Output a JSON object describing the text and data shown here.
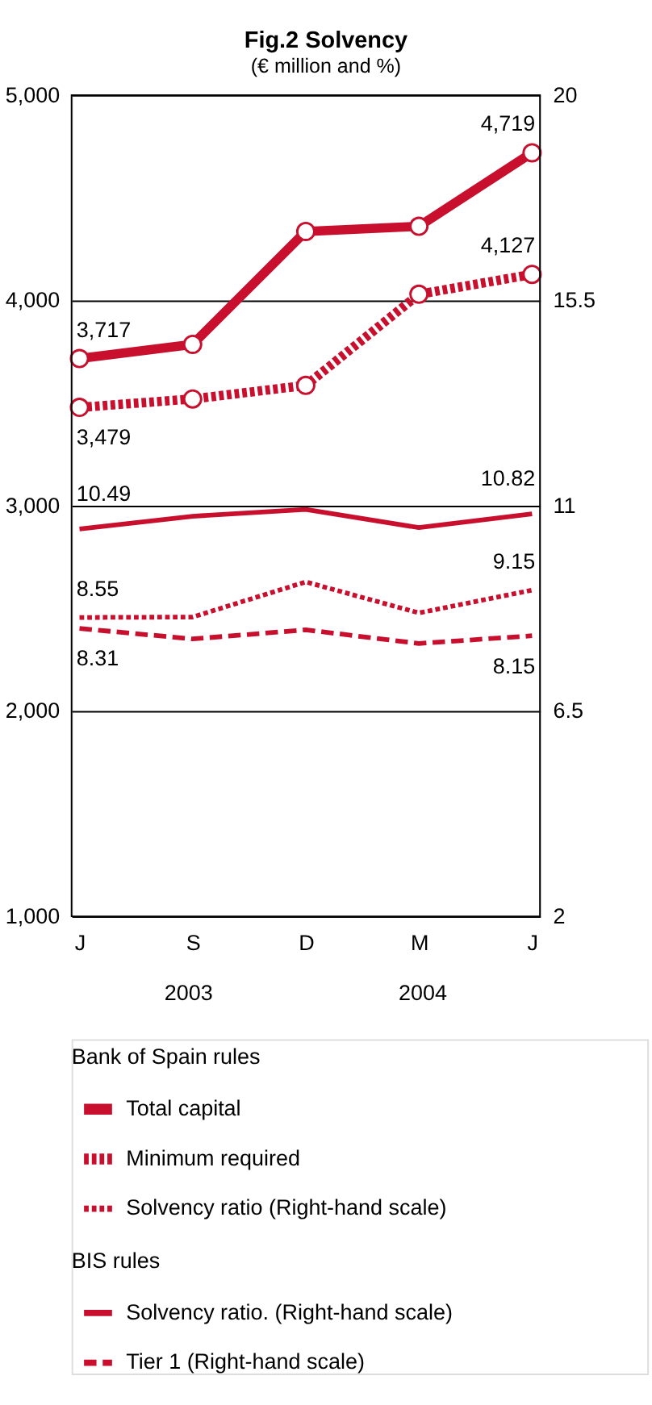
{
  "chart_data": {
    "type": "line",
    "title": "Fig.2 Solvency",
    "subtitle": "(€ million and %)",
    "categories": [
      "J",
      "S",
      "D",
      "M",
      "J"
    ],
    "ylim": [
      1000,
      5000
    ],
    "yticks": [
      {
        "value": 1000,
        "label": "1,000"
      },
      {
        "value": 2000,
        "label": "2,000"
      },
      {
        "value": 3000,
        "label": "3,000"
      },
      {
        "value": 4000,
        "label": "4,000"
      },
      {
        "value": 5000,
        "label": "5,000"
      }
    ],
    "y2lim": [
      2,
      20
    ],
    "y2ticks": [
      2,
      6.5,
      11,
      15.5,
      20
    ],
    "grid": "y",
    "legend": "bottom",
    "annotations": [
      "2003",
      "2004",
      "Bank of Spain rules",
      "BIS rules"
    ],
    "series": [
      {
        "name": "Total capital",
        "color": "#c8102e",
        "values": [
          3717,
          3786,
          4336,
          4361,
          4719
        ],
        "value_labels": [
          "3,717",
          null,
          null,
          null,
          "4,719"
        ],
        "marker": "circle",
        "line_style": "solid"
      },
      {
        "name": "Minimum required",
        "color": "#c8102e",
        "values": [
          3479,
          3520,
          3586,
          4030,
          4127
        ],
        "value_labels": [
          "3,479",
          null,
          null,
          null,
          "4,127"
        ],
        "marker": "circle",
        "line_style": "dotted"
      },
      {
        "name": "Solvency ratio (Right-hand scale)",
        "color": "#c8102e",
        "axis": "y2",
        "values": [
          8.55,
          8.56,
          9.33,
          8.65,
          9.15
        ],
        "value_labels": [
          "8.55",
          null,
          null,
          null,
          "9.15"
        ],
        "line_style": "dotted"
      },
      {
        "name": "Solvency ratio.  (Right-hand scale)",
        "color": "#c8102e",
        "axis": "y2",
        "values": [
          10.49,
          10.77,
          10.92,
          10.52,
          10.82
        ],
        "value_labels": [
          "10.49",
          null,
          null,
          null,
          "10.82"
        ],
        "line_style": "solid"
      },
      {
        "name": "Tier 1 (Right-hand scale)",
        "color": "#c8102e",
        "axis": "y2",
        "values": [
          8.31,
          8.08,
          8.28,
          7.98,
          8.15
        ],
        "value_labels": [
          "8.31",
          null,
          null,
          null,
          "8.15"
        ],
        "line_style": "dashed"
      }
    ]
  }
}
